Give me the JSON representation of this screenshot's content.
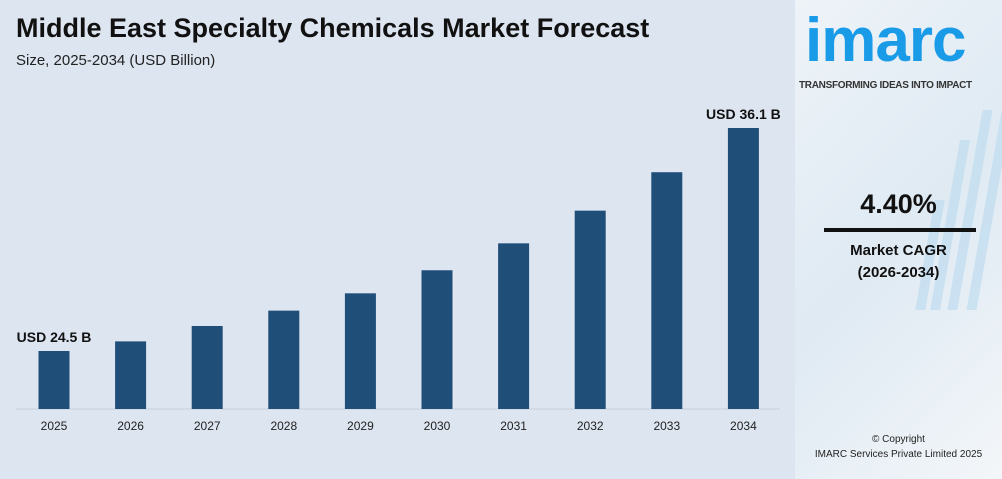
{
  "header": {
    "title": "Middle East Specialty Chemicals Market Forecast",
    "subtitle": "Size, 2025-2034 (USD Billion)"
  },
  "chart_data": {
    "type": "bar",
    "categories": [
      "2025",
      "2026",
      "2027",
      "2028",
      "2029",
      "2030",
      "2031",
      "2032",
      "2033",
      "2034"
    ],
    "values": [
      24.5,
      25.0,
      25.8,
      26.6,
      27.5,
      28.7,
      30.1,
      31.8,
      33.8,
      36.1
    ],
    "annotations": [
      {
        "category": "2025",
        "text": "USD 24.5 B"
      },
      {
        "category": "2034",
        "text": "USD 36.1 B"
      }
    ],
    "ylim": [
      21.5,
      36.1
    ],
    "grid": false,
    "bar_color": "#1f4e79"
  },
  "sidebar": {
    "logo": "imarc",
    "tagline": "TRANSFORMING IDEAS INTO IMPACT",
    "cagr_value": "4.40%",
    "cagr_label": "Market CAGR",
    "cagr_period": "(2026-2034)",
    "copyright": "© Copyright",
    "company": "IMARC Services Private Limited 2025",
    "brand_color": "#1a9be8"
  }
}
